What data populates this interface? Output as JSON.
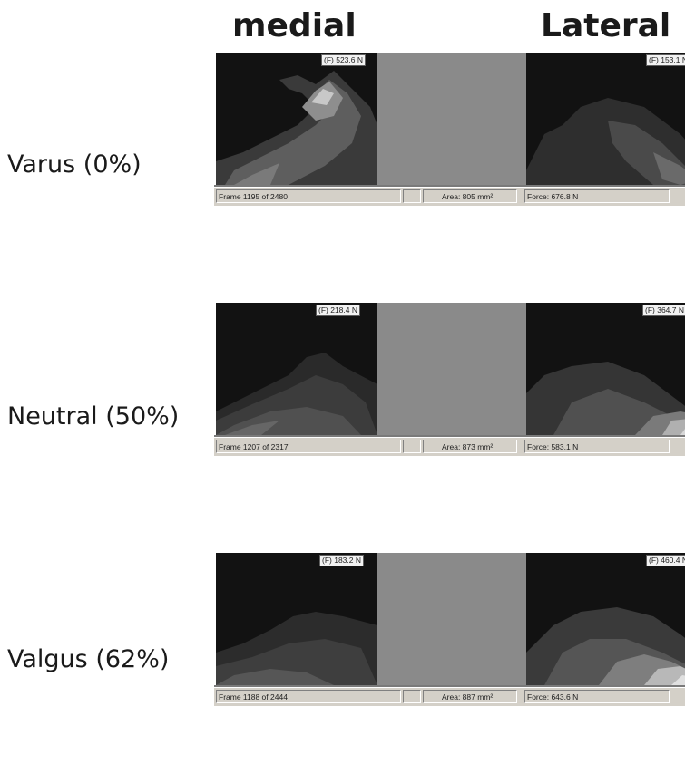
{
  "headers": {
    "medial": "medial",
    "lateral": "Lateral"
  },
  "rows": [
    {
      "label": "Varus (0%)",
      "medial_force": "(F) 523.6 N",
      "lateral_force": "(F) 153.1 N",
      "frame": "Frame 1195 of 2480",
      "area": "Area: 805 mm²",
      "force": "Force: 676.8 N"
    },
    {
      "label": "Neutral (50%)",
      "medial_force": "(F) 218.4 N",
      "lateral_force": "(F) 364.7 N",
      "frame": "Frame 1207 of 2317",
      "area": "Area: 873 mm²",
      "force": "Force: 583.1 N"
    },
    {
      "label": "Valgus (62%)",
      "medial_force": "(F) 183.2 N",
      "lateral_force": "(F) 460.4 N",
      "frame": "Frame 1188 of 2444",
      "area": "Area: 887 mm²",
      "force": "Force: 643.6 N"
    }
  ],
  "colors": {
    "background": "#121212",
    "gap": "#8a8a8a",
    "statusbar": "#d4d0c8"
  }
}
